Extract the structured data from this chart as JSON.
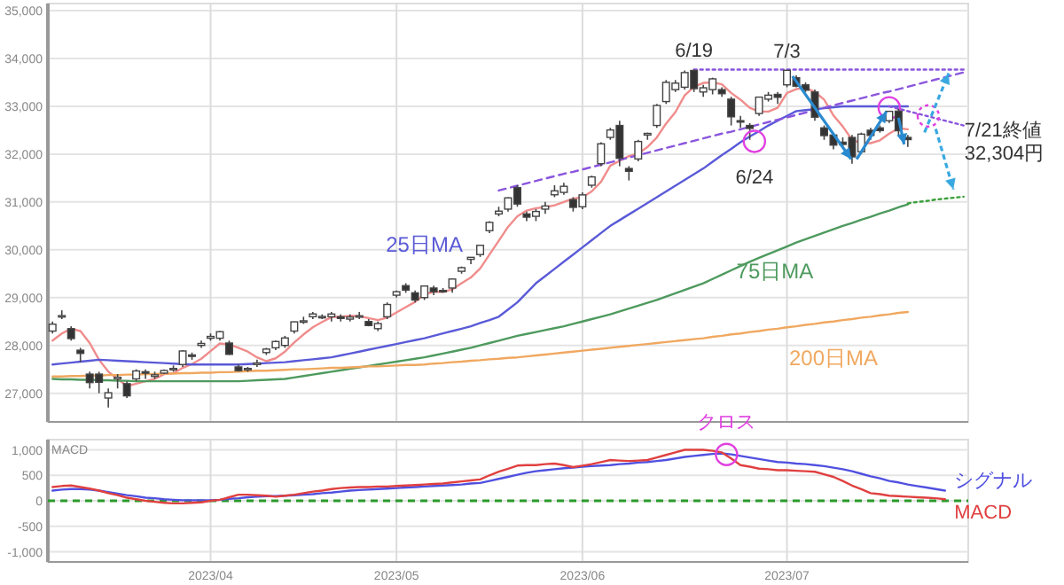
{
  "chart_data": [
    {
      "type": "candlestick",
      "grid": true,
      "tick_labels": "y",
      "ylim": [
        26400,
        35150
      ],
      "yticks": [
        {
          "value": 27000,
          "label": "27,000"
        },
        {
          "value": 28000,
          "label": "28,000"
        },
        {
          "value": 29000,
          "label": "29,000"
        },
        {
          "value": 30000,
          "label": "30,000"
        },
        {
          "value": 31000,
          "label": "31,000"
        },
        {
          "value": 32000,
          "label": "32,000"
        },
        {
          "value": 33000,
          "label": "33,000"
        },
        {
          "value": 34000,
          "label": "34,000"
        },
        {
          "value": 35000,
          "label": "35,000"
        }
      ],
      "categories": [
        null,
        null,
        null,
        null,
        null,
        null,
        null,
        null,
        null,
        null,
        null,
        null,
        null,
        null,
        null,
        null,
        null,
        "2023/04",
        null,
        null,
        null,
        null,
        null,
        null,
        null,
        null,
        null,
        null,
        null,
        null,
        null,
        null,
        null,
        null,
        null,
        null,
        null,
        "2023/05",
        null,
        null,
        null,
        null,
        null,
        null,
        null,
        null,
        null,
        null,
        null,
        null,
        null,
        null,
        null,
        null,
        null,
        null,
        null,
        "2023/06",
        null,
        null,
        null,
        null,
        null,
        null,
        null,
        null,
        null,
        null,
        null,
        null,
        null,
        null,
        null,
        null,
        null,
        null,
        null,
        null,
        null,
        "2023/07",
        null,
        null,
        null,
        null,
        null,
        null,
        null,
        null,
        null,
        null,
        null,
        null,
        null,
        null,
        null,
        null,
        null,
        null,
        null
      ],
      "ohlc": [
        [
          28300,
          28500,
          28250,
          28444
        ],
        [
          28600,
          28734,
          28550,
          28623
        ],
        [
          28350,
          28400,
          28100,
          28143
        ],
        [
          27900,
          27950,
          27650,
          27832
        ],
        [
          27400,
          27450,
          27100,
          27222
        ],
        [
          27400,
          27450,
          27000,
          27229
        ],
        [
          26900,
          27100,
          26700,
          27010
        ],
        [
          27300,
          27400,
          27100,
          27334
        ],
        [
          27200,
          27250,
          26900,
          26945
        ],
        [
          27300,
          27500,
          27250,
          27466
        ],
        [
          27450,
          27500,
          27300,
          27419
        ],
        [
          27350,
          27450,
          27300,
          27385
        ],
        [
          27420,
          27500,
          27400,
          27476
        ],
        [
          27500,
          27580,
          27450,
          27518
        ],
        [
          27600,
          27900,
          27550,
          27883
        ],
        [
          27800,
          27850,
          27700,
          27782
        ],
        [
          28000,
          28100,
          27950,
          28041
        ],
        [
          28150,
          28250,
          28100,
          28188
        ],
        [
          28150,
          28300,
          28100,
          28287
        ],
        [
          28050,
          28100,
          27800,
          27813
        ],
        [
          27550,
          27600,
          27450,
          27472
        ],
        [
          27500,
          27550,
          27450,
          27518
        ],
        [
          27600,
          27700,
          27550,
          27633
        ],
        [
          27850,
          27950,
          27800,
          27923
        ],
        [
          27950,
          28100,
          27900,
          28082
        ],
        [
          28000,
          28200,
          27950,
          28156
        ],
        [
          28300,
          28500,
          28250,
          28493
        ],
        [
          28500,
          28600,
          28450,
          28514
        ],
        [
          28600,
          28700,
          28550,
          28658
        ],
        [
          28600,
          28650,
          28550,
          28606
        ],
        [
          28600,
          28700,
          28500,
          28657
        ],
        [
          28600,
          28650,
          28500,
          28564
        ],
        [
          28550,
          28650,
          28500,
          28593
        ],
        [
          28600,
          28700,
          28550,
          28620
        ],
        [
          28500,
          28550,
          28400,
          28416
        ],
        [
          28350,
          28500,
          28300,
          28457
        ],
        [
          28600,
          28900,
          28550,
          28856
        ],
        [
          29050,
          29150,
          29000,
          29123
        ],
        [
          29250,
          29300,
          29100,
          29157
        ],
        [
          29100,
          29150,
          28900,
          28949
        ],
        [
          29000,
          29250,
          28950,
          29242
        ],
        [
          29200,
          29250,
          29050,
          29122
        ],
        [
          29150,
          29200,
          29100,
          29126
        ],
        [
          29200,
          29400,
          29100,
          29388
        ],
        [
          29550,
          29650,
          29500,
          29626
        ],
        [
          29800,
          29850,
          29700,
          29842
        ],
        [
          29900,
          30100,
          29850,
          30093
        ],
        [
          30400,
          30600,
          30350,
          30573
        ],
        [
          30750,
          30900,
          30700,
          30808
        ],
        [
          30850,
          31100,
          30800,
          31086
        ],
        [
          31300,
          31350,
          30900,
          30957
        ],
        [
          30750,
          30800,
          30600,
          30682
        ],
        [
          30700,
          30850,
          30600,
          30801
        ],
        [
          30850,
          31000,
          30750,
          30916
        ],
        [
          31150,
          31350,
          31100,
          31233
        ],
        [
          31200,
          31400,
          31150,
          31328
        ],
        [
          31050,
          31100,
          30800,
          30887
        ],
        [
          30900,
          31200,
          30850,
          31148
        ],
        [
          31350,
          31550,
          31300,
          31524
        ],
        [
          31800,
          32250,
          31750,
          32217
        ],
        [
          32350,
          32550,
          32300,
          32506
        ],
        [
          32600,
          32700,
          31750,
          31913
        ],
        [
          31700,
          31750,
          31450,
          31641
        ],
        [
          31900,
          32300,
          31850,
          32265
        ],
        [
          32400,
          32450,
          32300,
          32434
        ],
        [
          32600,
          33050,
          32550,
          33018
        ],
        [
          33100,
          33550,
          33050,
          33502
        ],
        [
          33350,
          33550,
          33300,
          33485
        ],
        [
          33400,
          33750,
          33350,
          33706
        ],
        [
          33750,
          33770,
          33300,
          33370
        ],
        [
          33300,
          33450,
          33200,
          33388
        ],
        [
          33350,
          33600,
          33250,
          33575
        ],
        [
          33350,
          33400,
          33200,
          33264
        ],
        [
          33150,
          33200,
          32600,
          32781
        ],
        [
          32700,
          32800,
          32550,
          32698
        ],
        [
          32600,
          32650,
          32300,
          32538
        ],
        [
          32850,
          33200,
          32800,
          33193
        ],
        [
          33150,
          33300,
          33100,
          33234
        ],
        [
          33250,
          33300,
          33050,
          33189
        ],
        [
          33450,
          33760,
          33400,
          33753
        ],
        [
          33600,
          33650,
          33400,
          33422
        ],
        [
          33450,
          33500,
          33300,
          33338
        ],
        [
          33300,
          33350,
          32700,
          32773
        ],
        [
          32550,
          32600,
          32300,
          32388
        ],
        [
          32400,
          32450,
          32100,
          32189
        ],
        [
          32250,
          32350,
          32150,
          32203
        ],
        [
          32350,
          32400,
          31800,
          31943
        ],
        [
          32050,
          32450,
          32000,
          32419
        ],
        [
          32500,
          32550,
          32300,
          32391
        ],
        [
          32550,
          32600,
          32450,
          32493
        ],
        [
          32700,
          32900,
          32650,
          32896
        ],
        [
          32900,
          32950,
          32400,
          32490
        ],
        [
          32350,
          32400,
          32150,
          32304
        ],
        null,
        null,
        null,
        null,
        null,
        null
      ],
      "series": [
        {
          "type": "line",
          "color": "#f08c8c",
          "values": [
            28100,
            28250,
            28350,
            28300,
            28050,
            27700,
            27450,
            27300,
            27150,
            27200,
            27250,
            27300,
            27400,
            27420,
            27530,
            27610,
            27720,
            27880,
            28040,
            28020,
            27950,
            27870,
            27750,
            27670,
            27730,
            27870,
            28060,
            28230,
            28380,
            28490,
            28590,
            28600,
            28620,
            28610,
            28570,
            28530,
            28580,
            28690,
            28800,
            28910,
            29070,
            29120,
            29120,
            29170,
            29300,
            29420,
            29610,
            29900,
            30190,
            30480,
            30700,
            30820,
            30870,
            30890,
            30930,
            31000,
            31070,
            31100,
            31220,
            31420,
            31760,
            31860,
            31960,
            32010,
            32150,
            32350,
            32640,
            32880,
            33230,
            33410,
            33490,
            33500,
            33460,
            33280,
            33140,
            32970,
            32890,
            32890,
            32970,
            33280,
            33360,
            33390,
            33300,
            33140,
            32810,
            32580,
            32300,
            32230,
            32230,
            32290,
            32430,
            32540,
            32520,
            null,
            null,
            null,
            null,
            null,
            null
          ]
        },
        {
          "type": "line",
          "name": "25日MA",
          "color": "#5a5ad8",
          "values": [
            27600,
            27620,
            27640,
            27660,
            27680,
            27700,
            27690,
            27680,
            27670,
            27660,
            27650,
            27640,
            27630,
            27620,
            27610,
            27600,
            27600,
            27600,
            27600,
            27600,
            27600,
            27610,
            27620,
            27630,
            27640,
            27650,
            27670,
            27690,
            27710,
            27730,
            27750,
            27790,
            27830,
            27870,
            27910,
            27950,
            27990,
            28030,
            28070,
            28110,
            28150,
            28200,
            28250,
            28300,
            28350,
            28400,
            28470,
            28530,
            28600,
            28750,
            28900,
            29100,
            29300,
            29450,
            29600,
            29750,
            29900,
            30050,
            30200,
            30350,
            30500,
            30620,
            30740,
            30860,
            30980,
            31100,
            31220,
            31340,
            31460,
            31580,
            31700,
            31840,
            31980,
            32110,
            32250,
            32370,
            32480,
            32600,
            32700,
            32800,
            32900,
            32920,
            32940,
            32960,
            32980,
            33000,
            33000,
            33000,
            33000,
            33000,
            33000,
            33000,
            33000,
            null,
            null,
            null,
            null,
            null,
            null
          ]
        },
        {
          "type": "line",
          "name": "75日MA",
          "color": "#4e9a5e",
          "values": [
            27300,
            27290,
            27290,
            27280,
            27280,
            27270,
            27270,
            27260,
            27260,
            27250,
            27250,
            27250,
            27250,
            27250,
            27250,
            27250,
            27250,
            27250,
            27250,
            27250,
            27250,
            27260,
            27270,
            27280,
            27290,
            27300,
            27330,
            27360,
            27390,
            27420,
            27450,
            27480,
            27510,
            27540,
            27570,
            27600,
            27630,
            27660,
            27690,
            27720,
            27750,
            27790,
            27830,
            27870,
            27910,
            27950,
            28000,
            28050,
            28100,
            28150,
            28200,
            28240,
            28280,
            28320,
            28360,
            28400,
            28450,
            28500,
            28550,
            28600,
            28650,
            28710,
            28770,
            28830,
            28890,
            28950,
            29020,
            29090,
            29160,
            29230,
            29300,
            29390,
            29480,
            29570,
            29660,
            29750,
            29830,
            29910,
            29990,
            30070,
            30150,
            30220,
            30290,
            30360,
            30430,
            30500,
            30560,
            30630,
            30690,
            30760,
            30820,
            30890,
            30950,
            null,
            null,
            null,
            null,
            null,
            null
          ]
        },
        {
          "type": "line",
          "name": "200日MA",
          "color": "#f0a860",
          "values": [
            27350,
            27350,
            27360,
            27360,
            27370,
            27370,
            27380,
            27380,
            27390,
            27390,
            27400,
            27400,
            27410,
            27410,
            27420,
            27420,
            27430,
            27430,
            27440,
            27440,
            27450,
            27460,
            27470,
            27470,
            27480,
            27490,
            27500,
            27500,
            27510,
            27520,
            27530,
            27530,
            27540,
            27550,
            27560,
            27560,
            27570,
            27580,
            27590,
            27590,
            27600,
            27620,
            27630,
            27650,
            27660,
            27680,
            27690,
            27710,
            27720,
            27740,
            27750,
            27770,
            27790,
            27810,
            27830,
            27850,
            27870,
            27890,
            27910,
            27930,
            27950,
            27970,
            27990,
            28010,
            28030,
            28050,
            28070,
            28090,
            28110,
            28130,
            28150,
            28180,
            28200,
            28230,
            28250,
            28280,
            28300,
            28330,
            28350,
            28380,
            28400,
            28430,
            28450,
            28480,
            28500,
            28530,
            28550,
            28580,
            28600,
            28630,
            28650,
            28680,
            28700,
            null,
            null,
            null,
            null,
            null,
            null
          ]
        },
        {
          "type": "line",
          "color": "#8a55dd",
          "line_style": "dashed",
          "values": [
            null,
            null,
            null,
            null,
            null,
            null,
            null,
            null,
            null,
            null,
            null,
            null,
            null,
            null,
            null,
            null,
            null,
            null,
            null,
            null,
            null,
            null,
            null,
            null,
            null,
            null,
            null,
            null,
            null,
            null,
            null,
            null,
            null,
            null,
            null,
            null,
            null,
            null,
            null,
            null,
            null,
            null,
            null,
            null,
            null,
            null,
            null,
            null,
            31240,
            31290,
            31340,
            31390,
            31440,
            31490,
            31540,
            31590,
            31630,
            31680,
            31730,
            31780,
            31830,
            31880,
            31930,
            31980,
            32030,
            32080,
            32130,
            32180,
            32230,
            32280,
            32330,
            32380,
            32430,
            32470,
            32520,
            32570,
            32620,
            32670,
            32720,
            32770,
            32820,
            32870,
            32920,
            32970,
            33020,
            33070,
            33120,
            33170,
            33220,
            33270,
            33310,
            33360,
            33410,
            33460,
            33510,
            33560,
            33610,
            33660,
            33710
          ]
        },
        {
          "type": "line",
          "color": "#8a55dd",
          "line_style": "dotted",
          "values": [
            null,
            null,
            null,
            null,
            null,
            null,
            null,
            null,
            null,
            null,
            null,
            null,
            null,
            null,
            null,
            null,
            null,
            null,
            null,
            null,
            null,
            null,
            null,
            null,
            null,
            null,
            null,
            null,
            null,
            null,
            null,
            null,
            null,
            null,
            null,
            null,
            null,
            null,
            null,
            null,
            null,
            null,
            null,
            null,
            null,
            null,
            null,
            null,
            null,
            null,
            null,
            null,
            null,
            null,
            null,
            null,
            null,
            null,
            null,
            null,
            null,
            null,
            null,
            null,
            null,
            null,
            null,
            null,
            null,
            33770,
            33770,
            33770,
            33770,
            33770,
            33770,
            33770,
            33770,
            33770,
            33770,
            33770,
            33770,
            33770,
            33770,
            33770,
            33770,
            33770,
            33770,
            33770,
            33770,
            33770,
            33770,
            33770,
            33770,
            33770,
            33770,
            33770,
            33770,
            33770,
            33770
          ]
        },
        {
          "type": "line",
          "color": "#8a55dd",
          "line_style": "dotted",
          "values": [
            null,
            null,
            null,
            null,
            null,
            null,
            null,
            null,
            null,
            null,
            null,
            null,
            null,
            null,
            null,
            null,
            null,
            null,
            null,
            null,
            null,
            null,
            null,
            null,
            null,
            null,
            null,
            null,
            null,
            null,
            null,
            null,
            null,
            null,
            null,
            null,
            null,
            null,
            null,
            null,
            null,
            null,
            null,
            null,
            null,
            null,
            null,
            null,
            null,
            null,
            null,
            null,
            null,
            null,
            null,
            null,
            null,
            null,
            null,
            null,
            null,
            null,
            null,
            null,
            null,
            null,
            null,
            null,
            null,
            null,
            null,
            null,
            null,
            null,
            null,
            null,
            null,
            null,
            null,
            null,
            null,
            null,
            null,
            null,
            null,
            null,
            null,
            null,
            null,
            null,
            33000,
            32950,
            32900,
            32850,
            32800,
            32750,
            32700,
            32650,
            32600
          ]
        },
        {
          "type": "scatter",
          "color": "#e040e0",
          "marker": "circle",
          "values": [
            null,
            null,
            null,
            null,
            null,
            null,
            null,
            null,
            null,
            null,
            null,
            null,
            null,
            null,
            null,
            null,
            null,
            null,
            null,
            null,
            null,
            null,
            null,
            null,
            null,
            null,
            null,
            null,
            null,
            null,
            null,
            null,
            null,
            null,
            null,
            null,
            null,
            null,
            null,
            null,
            null,
            null,
            null,
            null,
            null,
            null,
            null,
            null,
            null,
            null,
            null,
            null,
            null,
            null,
            null,
            null,
            null,
            null,
            null,
            null,
            null,
            null,
            null,
            null,
            null,
            null,
            null,
            null,
            null,
            null,
            null,
            null,
            null,
            null,
            null,
            null,
            null,
            null,
            null,
            null,
            null,
            null,
            null,
            null,
            null,
            null,
            null,
            null,
            null,
            null,
            32970,
            null,
            null,
            null,
            null,
            null,
            null,
            null,
            null
          ]
        },
        {
          "type": "line",
          "color": "#3aa03a",
          "line_style": "dotted",
          "values": [
            null,
            null,
            null,
            null,
            null,
            null,
            null,
            null,
            null,
            null,
            null,
            null,
            null,
            null,
            null,
            null,
            null,
            null,
            null,
            null,
            null,
            null,
            null,
            null,
            null,
            null,
            null,
            null,
            null,
            null,
            null,
            null,
            null,
            null,
            null,
            null,
            null,
            null,
            null,
            null,
            null,
            null,
            null,
            null,
            null,
            null,
            null,
            null,
            null,
            null,
            null,
            null,
            null,
            null,
            null,
            null,
            null,
            null,
            null,
            null,
            null,
            null,
            null,
            null,
            null,
            null,
            null,
            null,
            null,
            null,
            null,
            null,
            null,
            null,
            null,
            null,
            null,
            null,
            null,
            null,
            null,
            null,
            null,
            null,
            null,
            null,
            null,
            null,
            null,
            null,
            null,
            null,
            30970,
            31000,
            31020,
            31050,
            31070,
            31090,
            31110
          ]
        }
      ],
      "annotations": [
        {
          "text": "6/19",
          "y": 33770
        },
        {
          "text": "7/3",
          "y": 33760
        },
        {
          "text": "6/24",
          "y": 32268
        },
        "7/21終値 32,304円"
      ]
    },
    {
      "type": "line",
      "title": "MACD",
      "grid": true,
      "ylim": [
        -1200,
        1200
      ],
      "yticks": [
        {
          "value": -1000,
          "label": "-1,000"
        },
        -500,
        0,
        500,
        {
          "value": 1000,
          "label": "1,000"
        }
      ],
      "categories": [
        null,
        null,
        null,
        null,
        null,
        null,
        null,
        null,
        null,
        null,
        null,
        null,
        null,
        null,
        null,
        null,
        null,
        "2023/04",
        null,
        null,
        null,
        null,
        null,
        null,
        null,
        null,
        null,
        null,
        null,
        null,
        null,
        null,
        null,
        null,
        null,
        null,
        null,
        "2023/05",
        null,
        null,
        null,
        null,
        null,
        null,
        null,
        null,
        null,
        null,
        null,
        null,
        null,
        null,
        null,
        null,
        null,
        null,
        null,
        "2023/06",
        null,
        null,
        null,
        null,
        null,
        null,
        null,
        null,
        null,
        null,
        null,
        null,
        null,
        null,
        null,
        null,
        null,
        null,
        null,
        null,
        null,
        "2023/07",
        null,
        null,
        null,
        null,
        null,
        null,
        null,
        null,
        null,
        null,
        null,
        null,
        null,
        null,
        null,
        null,
        null,
        null,
        null
      ],
      "series": [
        {
          "name": "シグナル",
          "color": "#5050e0",
          "values": [
            200,
            220,
            230,
            230,
            220,
            200,
            170,
            140,
            110,
            90,
            60,
            50,
            30,
            20,
            10,
            10,
            10,
            10,
            20,
            40,
            50,
            70,
            80,
            90,
            90,
            100,
            110,
            120,
            130,
            150,
            160,
            180,
            200,
            210,
            220,
            230,
            240,
            250,
            260,
            270,
            280,
            290,
            300,
            310,
            320,
            340,
            350,
            390,
            430,
            470,
            510,
            550,
            580,
            600,
            620,
            640,
            650,
            670,
            680,
            690,
            700,
            720,
            730,
            750,
            760,
            780,
            800,
            830,
            860,
            880,
            900,
            920,
            930,
            910,
            880,
            850,
            820,
            790,
            760,
            750,
            730,
            720,
            700,
            680,
            650,
            620,
            580,
            530,
            480,
            440,
            390,
            360,
            320,
            290,
            260,
            230,
            200,
            null,
            null
          ]
        },
        {
          "name": "MACD",
          "color": "#e04040",
          "values": [
            270,
            290,
            300,
            270,
            240,
            200,
            150,
            110,
            60,
            30,
            0,
            -20,
            -40,
            -50,
            -50,
            -40,
            -30,
            0,
            20,
            70,
            120,
            120,
            110,
            100,
            80,
            100,
            120,
            150,
            180,
            200,
            230,
            250,
            260,
            270,
            270,
            280,
            280,
            290,
            300,
            310,
            320,
            330,
            340,
            360,
            380,
            400,
            420,
            500,
            570,
            630,
            690,
            700,
            700,
            720,
            730,
            700,
            660,
            690,
            720,
            760,
            800,
            790,
            780,
            790,
            800,
            850,
            900,
            950,
            1000,
            1000,
            1000,
            980,
            950,
            830,
            700,
            670,
            630,
            620,
            600,
            600,
            590,
            580,
            570,
            520,
            470,
            390,
            300,
            230,
            150,
            130,
            100,
            90,
            80,
            70,
            60,
            50,
            30,
            null,
            null
          ]
        }
      ],
      "ref_lines": [
        {
          "axis": "y",
          "value": 0,
          "color": "#2a9a2a",
          "line_style": "dashed"
        }
      ],
      "annotations": [
        {
          "text": "クロス",
          "y": 910
        }
      ]
    }
  ]
}
